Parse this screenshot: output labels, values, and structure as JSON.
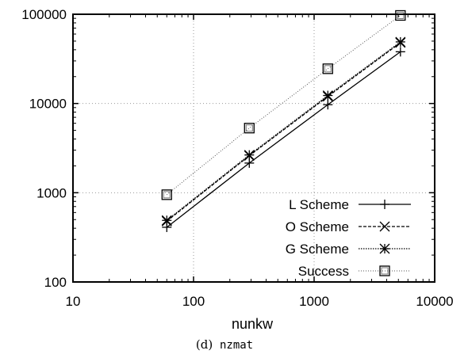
{
  "chart_data": {
    "type": "line",
    "xscale": "log",
    "yscale": "log",
    "xlabel": "nunkw",
    "ylabel": "",
    "xlim": [
      10,
      10000
    ],
    "ylim": [
      100,
      100000
    ],
    "xticks": [
      "10",
      "100",
      "1000",
      "10000"
    ],
    "yticks": [
      "100",
      "1000",
      "10000",
      "100000"
    ],
    "grid": true,
    "legend_position": "bottom-right",
    "x": [
      60,
      290,
      1300,
      5200
    ],
    "series": [
      {
        "name": "L Scheme",
        "marker": "plus",
        "line": "solid",
        "values": [
          410,
          2150,
          9700,
          38000
        ]
      },
      {
        "name": "O Scheme",
        "marker": "x",
        "line": "dashed",
        "values": [
          480,
          2600,
          12000,
          48000
        ]
      },
      {
        "name": "G Scheme",
        "marker": "star",
        "line": "dotted",
        "values": [
          490,
          2650,
          12300,
          49000
        ]
      },
      {
        "name": "Success",
        "marker": "square",
        "line": "dotted-light",
        "values": [
          950,
          5300,
          24500,
          97000
        ]
      }
    ]
  },
  "caption": {
    "label": "(d)",
    "code": "nzmat"
  }
}
